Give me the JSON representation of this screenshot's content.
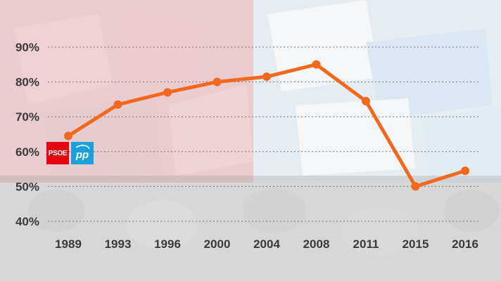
{
  "colors": {
    "line": "#f2691e",
    "psoe_red": "#e30613",
    "pp_blue": "#1ba0dc",
    "grid": "#7a7a7a",
    "label": "#3a3a3a"
  },
  "logos": {
    "psoe": {
      "label": "PSOE",
      "icon": "psoe-logo-icon"
    },
    "pp": {
      "label": "pp",
      "icon": "pp-logo-icon"
    }
  },
  "chart_data": {
    "type": "line",
    "categories": [
      "1989",
      "1993",
      "1996",
      "2000",
      "2004",
      "2008",
      "2011",
      "2015",
      "2016"
    ],
    "values": [
      64.5,
      73.5,
      77,
      80,
      81.5,
      85,
      74.5,
      50,
      54.5
    ],
    "ylim": [
      40,
      90
    ],
    "yticks": [
      40,
      50,
      60,
      70,
      80,
      90
    ],
    "ytick_labels": [
      "40%",
      "50%",
      "60%",
      "70%",
      "80%",
      "90%"
    ],
    "grid": true,
    "legend": "none"
  }
}
